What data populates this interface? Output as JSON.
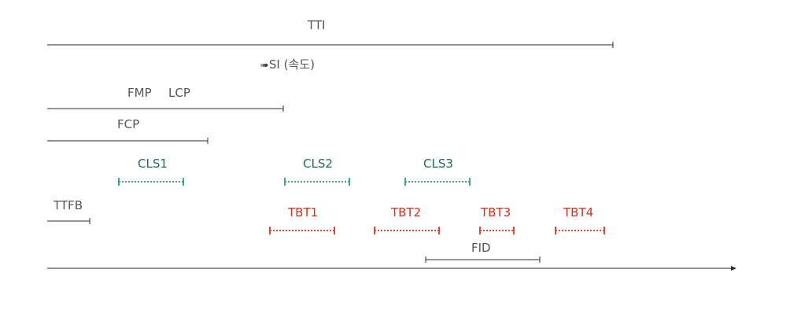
{
  "colors": {
    "line": "#2b2b2b",
    "text": "#555555",
    "cls_line": "#3aa88e",
    "cls_text": "#1d6b5c",
    "tbt_line": "#d84a3a",
    "tbt_text": "#cc3322"
  },
  "labels": {
    "tti": "TTI",
    "si_arrow": "➠",
    "si": "SI (속도)",
    "fmp": "FMP",
    "lcp": "LCP",
    "fcp": "FCP",
    "ttfb": "TTFB",
    "fid": "FID",
    "cls1": "CLS1",
    "cls2": "CLS2",
    "cls3": "CLS3",
    "tbt1": "TBT1",
    "tbt2": "TBT2",
    "tbt3": "TBT3",
    "tbt4": "TBT4"
  },
  "icons": {
    "si_arrow": "right-arrow-icon",
    "timeline_end": "arrowhead-icon"
  }
}
